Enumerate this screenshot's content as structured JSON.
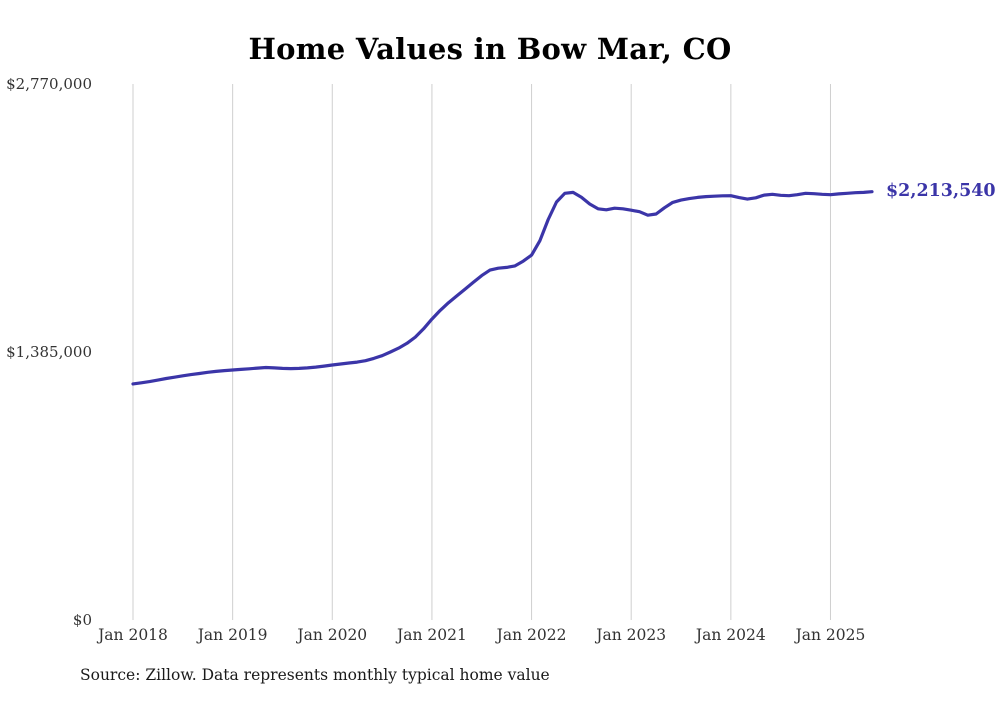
{
  "title": "Home Values in Bow Mar, CO",
  "source_note": "Source: Zillow. Data represents monthly typical home value",
  "end_label": "$2,213,540",
  "colors": {
    "line": "#3b35a8",
    "grid": "#cfcfcf",
    "axis_text": "#333333",
    "title_text": "#000000",
    "end_label": "#3b35a8"
  },
  "chart_data": {
    "type": "line",
    "title": "Home Values in Bow Mar, CO",
    "xlabel": "",
    "ylabel": "",
    "ylim": [
      0,
      2770000
    ],
    "grid": "vertical-only",
    "legend": "none",
    "y_ticks": [
      {
        "value": 0,
        "label": "$0"
      },
      {
        "value": 1385000,
        "label": "$1,385,000"
      },
      {
        "value": 2770000,
        "label": "$2,770,000"
      }
    ],
    "x_ticks": [
      {
        "month_index": 0,
        "label": "Jan 2018"
      },
      {
        "month_index": 12,
        "label": "Jan 2019"
      },
      {
        "month_index": 24,
        "label": "Jan 2020"
      },
      {
        "month_index": 36,
        "label": "Jan 2021"
      },
      {
        "month_index": 48,
        "label": "Jan 2022"
      },
      {
        "month_index": 60,
        "label": "Jan 2023"
      },
      {
        "month_index": 72,
        "label": "Jan 2024"
      },
      {
        "month_index": 84,
        "label": "Jan 2025"
      }
    ],
    "x": [
      "Jan 2018",
      "Feb 2018",
      "Mar 2018",
      "Apr 2018",
      "May 2018",
      "Jun 2018",
      "Jul 2018",
      "Aug 2018",
      "Sep 2018",
      "Oct 2018",
      "Nov 2018",
      "Dec 2018",
      "Jan 2019",
      "Feb 2019",
      "Mar 2019",
      "Apr 2019",
      "May 2019",
      "Jun 2019",
      "Jul 2019",
      "Aug 2019",
      "Sep 2019",
      "Oct 2019",
      "Nov 2019",
      "Dec 2019",
      "Jan 2020",
      "Feb 2020",
      "Mar 2020",
      "Apr 2020",
      "May 2020",
      "Jun 2020",
      "Jul 2020",
      "Aug 2020",
      "Sep 2020",
      "Oct 2020",
      "Nov 2020",
      "Dec 2020",
      "Jan 2021",
      "Feb 2021",
      "Mar 2021",
      "Apr 2021",
      "May 2021",
      "Jun 2021",
      "Jul 2021",
      "Aug 2021",
      "Sep 2021",
      "Oct 2021",
      "Nov 2021",
      "Dec 2021",
      "Jan 2022",
      "Feb 2022",
      "Mar 2022",
      "Apr 2022",
      "May 2022",
      "Jun 2022",
      "Jul 2022",
      "Aug 2022",
      "Sep 2022",
      "Oct 2022",
      "Nov 2022",
      "Dec 2022",
      "Jan 2023",
      "Feb 2023",
      "Mar 2023",
      "Apr 2023",
      "May 2023",
      "Jun 2023",
      "Jul 2023",
      "Aug 2023",
      "Sep 2023",
      "Oct 2023",
      "Nov 2023",
      "Dec 2023",
      "Jan 2024",
      "Feb 2024",
      "Mar 2024",
      "Apr 2024",
      "May 2024",
      "Jun 2024",
      "Jul 2024",
      "Aug 2024",
      "Sep 2024",
      "Oct 2024",
      "Nov 2024",
      "Dec 2024",
      "Jan 2025",
      "Feb 2025",
      "Mar 2025",
      "Apr 2025",
      "May 2025",
      "Jun 2025"
    ],
    "values": [
      1220000,
      1226000,
      1232000,
      1240000,
      1248000,
      1255000,
      1262000,
      1268000,
      1274000,
      1280000,
      1285000,
      1289000,
      1292000,
      1295000,
      1298000,
      1302000,
      1305000,
      1303000,
      1300000,
      1299000,
      1300000,
      1303000,
      1307000,
      1312000,
      1318000,
      1323000,
      1328000,
      1333000,
      1340000,
      1352000,
      1366000,
      1385000,
      1405000,
      1430000,
      1462000,
      1505000,
      1555000,
      1600000,
      1640000,
      1675000,
      1710000,
      1745000,
      1780000,
      1808000,
      1818000,
      1822000,
      1830000,
      1855000,
      1886000,
      1960000,
      2070000,
      2160000,
      2205000,
      2210000,
      2185000,
      2150000,
      2125000,
      2120000,
      2128000,
      2125000,
      2118000,
      2110000,
      2092000,
      2098000,
      2130000,
      2158000,
      2170000,
      2178000,
      2184000,
      2188000,
      2190000,
      2192000,
      2193000,
      2183000,
      2175000,
      2182000,
      2196000,
      2200000,
      2195000,
      2193000,
      2198000,
      2205000,
      2203000,
      2200000,
      2198000,
      2202000,
      2205000,
      2208000,
      2210000,
      2213540
    ],
    "end_value": 2213540,
    "end_value_label": "$2,213,540"
  }
}
